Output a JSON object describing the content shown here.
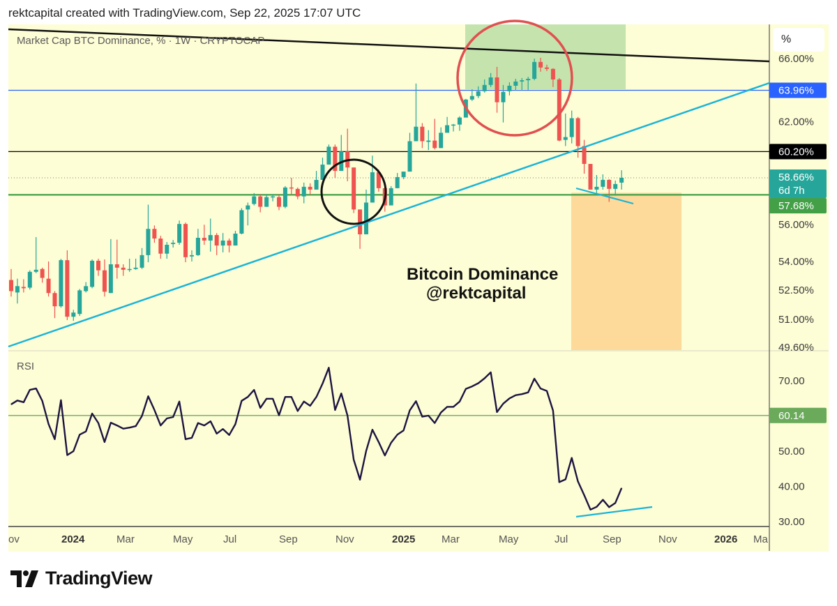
{
  "header": {
    "credit": "rektcapital created with TradingView.com, Sep 22, 2025 17:07 UTC"
  },
  "legend": {
    "symbol_title": "Market Cap BTC Dominance, % · 1W · CRYPTOCAP"
  },
  "scale_button": {
    "label": "%"
  },
  "annotation": {
    "title": "Bitcoin Dominance",
    "handle": "@rektcapital"
  },
  "rsi_pane": {
    "label": "RSI"
  },
  "logo": {
    "text": "TradingView"
  },
  "colors": {
    "background": "#fdfdd6",
    "up": "#26a69a",
    "down": "#ef5350",
    "rsi_line": "#1c1440",
    "trendline": "#19b4d6",
    "level_blue": "#2962ff",
    "level_black": "#000000",
    "level_green": "#43a047",
    "last_price": "#26a69a"
  },
  "price_levels": [
    {
      "label": "63.96%",
      "value": 63.96,
      "color": "#2962ff"
    },
    {
      "label": "60.20%",
      "value": 60.2,
      "color": "#000000"
    },
    {
      "label": "57.68%",
      "value": 57.68,
      "color": "#43a047"
    }
  ],
  "last_price": {
    "label": "58.66%",
    "value": 58.66,
    "countdown": "6d 7h"
  },
  "rsi_level": {
    "label": "60.14",
    "value": 60.14
  },
  "chart_data": [
    {
      "type": "candlestick",
      "title": "Market Cap BTC Dominance, % · 1W · CRYPTOCAP",
      "interval": "1W",
      "scale": "log",
      "ylabel": "%",
      "ylim": [
        49.6,
        66.3
      ],
      "y_ticks": [
        "66.00%",
        "62.00%",
        "56.00%",
        "54.00%",
        "52.50%",
        "51.00%",
        "49.60%"
      ],
      "y_tick_values": [
        66,
        62,
        56,
        54,
        52.5,
        51,
        49.6
      ],
      "x_labels": [
        "ov",
        "2024",
        "Mar",
        "May",
        "Jul",
        "Sep",
        "Nov",
        "2025",
        "Mar",
        "May",
        "Jul",
        "Sep",
        "Nov",
        "2026",
        "Ma"
      ],
      "ohlc_columns": [
        "open",
        "high",
        "low",
        "close"
      ],
      "ohlc": [
        [
          53.02,
          53.6,
          52.16,
          52.44
        ],
        [
          52.37,
          53.09,
          51.8,
          52.7
        ],
        [
          52.66,
          53.06,
          52.37,
          52.59
        ],
        [
          52.62,
          53.53,
          52.52,
          53.45
        ],
        [
          53.45,
          55.32,
          53.38,
          53.56
        ],
        [
          53.6,
          53.67,
          52.88,
          53.13
        ],
        [
          53.09,
          54.0,
          52.16,
          52.34
        ],
        [
          52.34,
          52.44,
          51.06,
          51.66
        ],
        [
          51.66,
          54.14,
          51.59,
          54.07
        ],
        [
          54.07,
          54.6,
          50.96,
          51.13
        ],
        [
          51.13,
          51.48,
          50.92,
          51.34
        ],
        [
          51.27,
          52.55,
          51.17,
          52.48
        ],
        [
          52.44,
          52.91,
          52.37,
          52.7
        ],
        [
          52.66,
          54.11,
          52.59,
          54.04
        ],
        [
          54.04,
          54.15,
          53.24,
          53.53
        ],
        [
          53.53,
          54.11,
          52.16,
          52.41
        ],
        [
          52.34,
          55.21,
          52.34,
          53.85
        ],
        [
          53.85,
          55.18,
          53.09,
          53.67
        ],
        [
          53.67,
          53.85,
          53.24,
          53.56
        ],
        [
          53.56,
          54.15,
          53.45,
          53.6
        ],
        [
          53.6,
          54.15,
          53.56,
          53.67
        ],
        [
          53.67,
          54.72,
          53.6,
          54.34
        ],
        [
          54.34,
          57.12,
          53.96,
          55.77
        ],
        [
          55.77,
          55.96,
          55.01,
          55.24
        ],
        [
          55.24,
          55.39,
          54.15,
          54.42
        ],
        [
          54.42,
          55.05,
          54.15,
          54.9
        ],
        [
          54.94,
          55.16,
          54.75,
          55.01
        ],
        [
          55.01,
          56.23,
          54.9,
          56.04
        ],
        [
          56.04,
          56.12,
          53.96,
          54.23
        ],
        [
          54.27,
          54.6,
          54.0,
          54.34
        ],
        [
          54.34,
          55.77,
          54.3,
          55.28
        ],
        [
          55.28,
          56.0,
          54.9,
          55.13
        ],
        [
          55.13,
          56.34,
          54.53,
          55.43
        ],
        [
          55.43,
          55.54,
          54.34,
          54.86
        ],
        [
          54.86,
          55.54,
          54.49,
          55.13
        ],
        [
          55.13,
          55.24,
          54.49,
          54.86
        ],
        [
          54.86,
          55.66,
          54.86,
          55.51
        ],
        [
          55.51,
          56.92,
          55.47,
          56.81
        ],
        [
          56.85,
          57.24,
          55.96,
          57.08
        ],
        [
          57.16,
          57.78,
          57.08,
          57.59
        ],
        [
          57.59,
          57.7,
          56.69,
          57.0
        ],
        [
          57.0,
          57.7,
          57.0,
          57.55
        ],
        [
          57.55,
          57.7,
          57.31,
          57.59
        ],
        [
          57.55,
          57.7,
          56.81,
          57.0
        ],
        [
          57.0,
          58.18,
          56.92,
          58.1
        ],
        [
          58.1,
          58.66,
          57.67,
          58.06
        ],
        [
          58.02,
          58.1,
          57.43,
          57.59
        ],
        [
          57.59,
          58.38,
          57.2,
          58.14
        ],
        [
          58.14,
          58.34,
          57.7,
          57.98
        ],
        [
          57.98,
          59.06,
          57.98,
          58.54
        ],
        [
          58.54,
          59.84,
          58.54,
          59.43
        ],
        [
          59.43,
          60.62,
          59.43,
          60.49
        ],
        [
          60.49,
          60.62,
          58.66,
          59.06
        ],
        [
          59.06,
          61.2,
          59.06,
          60.21
        ],
        [
          60.21,
          61.58,
          58.46,
          59.26
        ],
        [
          59.26,
          59.26,
          56.65,
          56.85
        ],
        [
          56.85,
          56.85,
          54.68,
          55.47
        ],
        [
          55.47,
          57.98,
          55.47,
          57.24
        ],
        [
          57.24,
          59.96,
          57.24,
          58.98
        ],
        [
          58.98,
          59.14,
          57.86,
          58.06
        ],
        [
          58.06,
          58.18,
          56.73,
          57.08
        ],
        [
          57.08,
          58.18,
          57.08,
          58.06
        ],
        [
          58.06,
          58.94,
          58.06,
          58.7
        ],
        [
          58.7,
          59.02,
          58.58,
          59.02
        ],
        [
          59.02,
          61.33,
          59.02,
          60.82
        ],
        [
          60.82,
          64.39,
          60.82,
          61.7
        ],
        [
          61.7,
          61.92,
          60.41,
          60.82
        ],
        [
          60.78,
          61.49,
          60.29,
          60.86
        ],
        [
          60.86,
          62.18,
          60.33,
          60.41
        ],
        [
          60.41,
          61.66,
          60.41,
          61.33
        ],
        [
          61.33,
          62.3,
          61.41,
          61.79
        ],
        [
          61.79,
          61.87,
          61.41,
          61.83
        ],
        [
          61.83,
          62.34,
          61.45,
          62.26
        ],
        [
          62.26,
          63.42,
          62.26,
          63.38
        ],
        [
          63.38,
          64.03,
          63.29,
          63.6
        ],
        [
          63.6,
          64.21,
          63.47,
          63.9
        ],
        [
          63.9,
          64.65,
          63.82,
          64.3
        ],
        [
          64.3,
          65.06,
          64.17,
          64.78
        ],
        [
          64.78,
          65.46,
          62.56,
          63.21
        ],
        [
          63.21,
          64.3,
          61.96,
          63.86
        ],
        [
          63.9,
          64.47,
          63.64,
          64.25
        ],
        [
          64.25,
          64.69,
          63.95,
          64.52
        ],
        [
          64.52,
          64.74,
          63.95,
          64.6
        ],
        [
          64.6,
          64.82,
          63.99,
          64.69
        ],
        [
          64.69,
          66.0,
          64.6,
          65.78
        ],
        [
          65.78,
          66.05,
          65.15,
          65.42
        ],
        [
          65.42,
          65.6,
          65.19,
          65.33
        ],
        [
          65.33,
          65.37,
          64.17,
          64.65
        ],
        [
          64.65,
          64.74,
          60.82,
          60.86
        ],
        [
          60.9,
          62.51,
          60.53,
          61.07
        ],
        [
          61.07,
          62.69,
          60.69,
          62.22
        ],
        [
          62.22,
          62.3,
          59.84,
          60.53
        ],
        [
          60.53,
          60.9,
          58.9,
          59.47
        ],
        [
          59.47,
          59.47,
          57.98,
          57.98
        ],
        [
          57.98,
          58.82,
          57.78,
          58.14
        ],
        [
          58.14,
          58.86,
          57.98,
          58.54
        ],
        [
          58.54,
          58.58,
          57.28,
          58.02
        ],
        [
          58.02,
          58.5,
          57.63,
          58.3
        ],
        [
          58.38,
          59.1,
          57.98,
          58.66
        ]
      ]
    },
    {
      "type": "line",
      "title": "RSI",
      "ylim": [
        28,
        76
      ],
      "y_ticks": [
        "70.00",
        "50.00",
        "40.00",
        "30.00"
      ],
      "y_tick_values": [
        70,
        50,
        40,
        30
      ],
      "values": [
        63.3,
        64.4,
        63.9,
        67.4,
        67.8,
        64.3,
        57.7,
        53.4,
        64.5,
        48.9,
        50.0,
        54.7,
        55.6,
        60.7,
        58.0,
        52.6,
        58.1,
        57.3,
        56.4,
        56.7,
        57.1,
        60.0,
        65.6,
        61.7,
        57.3,
        59.3,
        59.7,
        64.1,
        53.4,
        53.8,
        58.0,
        57.3,
        58.5,
        55.0,
        56.3,
        54.6,
        57.7,
        64.3,
        65.4,
        67.4,
        62.3,
        64.9,
        64.9,
        60.2,
        65.4,
        65.4,
        61.4,
        64.1,
        62.9,
        65.4,
        69.2,
        73.7,
        61.7,
        66.4,
        60.1,
        47.6,
        41.9,
        50.1,
        56.1,
        52.6,
        48.8,
        52.4,
        54.7,
        55.9,
        61.6,
        64.2,
        59.8,
        60.1,
        58.0,
        61.0,
        62.6,
        62.6,
        64.1,
        67.7,
        68.4,
        69.3,
        70.7,
        72.4,
        61.1,
        63.5,
        65.0,
        65.9,
        66.2,
        66.7,
        70.6,
        67.8,
        67.1,
        61.5,
        41.2,
        42.0,
        48.1,
        41.4,
        37.5,
        33.4,
        34.2,
        36.2,
        34.1,
        35.3,
        39.5
      ]
    }
  ]
}
